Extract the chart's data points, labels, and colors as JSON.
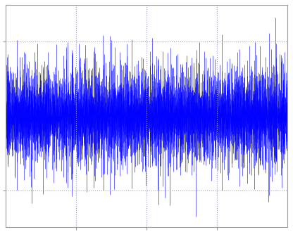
{
  "line_color": "#0000FF",
  "background_color": "#FFFFFF",
  "grid_color": "#9999CC",
  "grid_linestyle": ":",
  "xlim": [
    0,
    5000
  ],
  "ylim": [
    -1.5,
    1.5
  ],
  "ytick_positions": [
    -1.0,
    1.0
  ],
  "xtick_positions": [
    1250,
    2500,
    3750
  ],
  "n_samples": 5000,
  "seed": 7,
  "linewidth": 0.4,
  "figsize": [
    4.16,
    3.3
  ],
  "dpi": 100,
  "spine_color": "#999999",
  "signal_scale": 1.35
}
